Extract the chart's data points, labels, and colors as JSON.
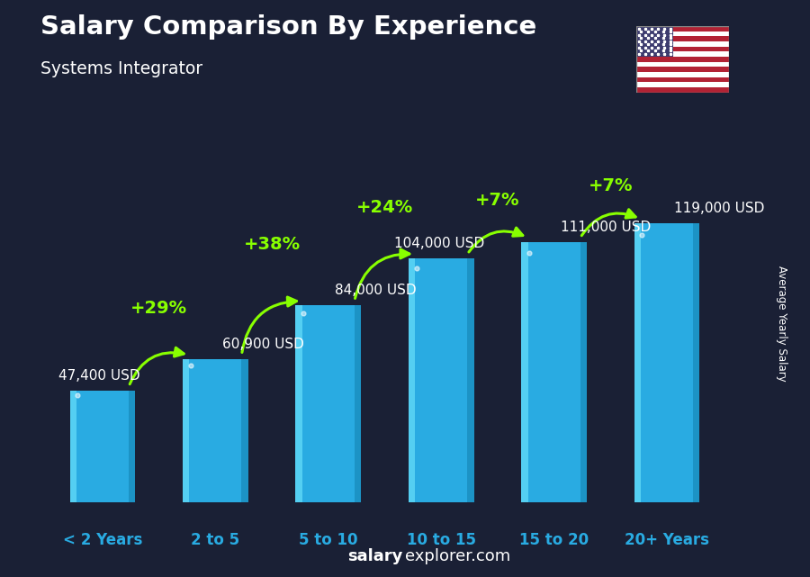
{
  "title": "Salary Comparison By Experience",
  "subtitle": "Systems Integrator",
  "ylabel": "Average Yearly Salary",
  "categories": [
    "< 2 Years",
    "2 to 5",
    "5 to 10",
    "10 to 15",
    "15 to 20",
    "20+ Years"
  ],
  "values": [
    47400,
    60900,
    84000,
    104000,
    111000,
    119000
  ],
  "value_labels": [
    "47,400 USD",
    "60,900 USD",
    "84,000 USD",
    "104,000 USD",
    "111,000 USD",
    "119,000 USD"
  ],
  "pct_changes": [
    "+29%",
    "+38%",
    "+24%",
    "+7%",
    "+7%"
  ],
  "bar_color_main": "#29ABE2",
  "bar_color_left": "#5CD6F5",
  "bar_color_right": "#1A8FC0",
  "bar_color_top": "#6DE0FF",
  "bg_color": "#1A2035",
  "title_color": "#FFFFFF",
  "subtitle_color": "#FFFFFF",
  "pct_color": "#88FF00",
  "value_color": "#FFFFFF",
  "xlabel_color": "#29ABE2",
  "ylabel_color": "#FFFFFF",
  "watermark_color": "#FFFFFF",
  "figsize": [
    9.0,
    6.41
  ],
  "dpi": 100,
  "ylim_max": 148000,
  "bar_width": 0.58,
  "val_label_positions": [
    {
      "xi": -0.38,
      "above": false
    },
    {
      "xi": 0.05,
      "above": true
    },
    {
      "xi": 0.05,
      "above": false
    },
    {
      "xi": -0.38,
      "above": false
    },
    {
      "xi": 0.05,
      "above": false
    },
    {
      "xi": 0.05,
      "above": true
    }
  ],
  "arc_params": [
    {
      "i": 0,
      "j": 1,
      "arc_lift": 22000,
      "pct": "+29%",
      "rad": -0.42
    },
    {
      "i": 1,
      "j": 2,
      "arc_lift": 26000,
      "pct": "+38%",
      "rad": -0.42
    },
    {
      "i": 2,
      "j": 3,
      "arc_lift": 22000,
      "pct": "+24%",
      "rad": -0.42
    },
    {
      "i": 3,
      "j": 4,
      "arc_lift": 18000,
      "pct": "+7%",
      "rad": -0.42
    },
    {
      "i": 4,
      "j": 5,
      "arc_lift": 16000,
      "pct": "+7%",
      "rad": -0.42
    }
  ]
}
